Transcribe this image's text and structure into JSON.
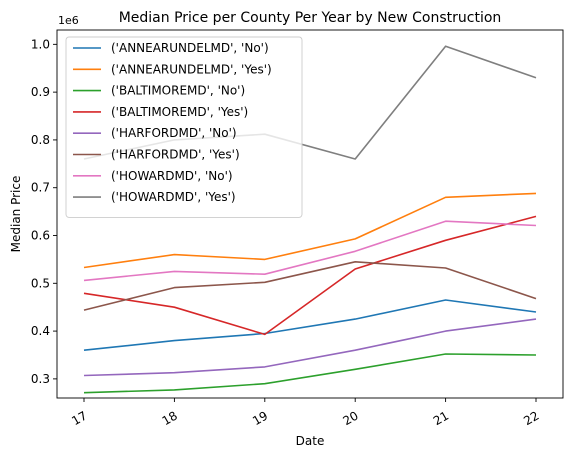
{
  "chart_data": {
    "type": "line",
    "title": "Median Price per County Per Year by New Construction",
    "xlabel": "Date",
    "ylabel": "Median Price",
    "y_multiplier_label": "1e6",
    "x": [
      "17",
      "18",
      "19",
      "20",
      "21",
      "22"
    ],
    "ylim": [
      0.26,
      1.03
    ],
    "yticks": [
      "0.3",
      "0.4",
      "0.5",
      "0.6",
      "0.7",
      "0.8",
      "0.9",
      "1.0"
    ],
    "grid": false,
    "legend_position": "top-left",
    "series": [
      {
        "name": "('ANNEARUNDELMD', 'No')",
        "color": "#1f77b4",
        "values": [
          0.36,
          0.38,
          0.395,
          0.425,
          0.465,
          0.44
        ]
      },
      {
        "name": "('ANNEARUNDELMD', 'Yes')",
        "color": "#ff7f0e",
        "values": [
          0.533,
          0.56,
          0.55,
          0.593,
          0.68,
          0.688
        ]
      },
      {
        "name": "('BALTIMOREMD', 'No')",
        "color": "#2ca02c",
        "values": [
          0.271,
          0.277,
          0.29,
          0.32,
          0.352,
          0.35
        ]
      },
      {
        "name": "('BALTIMOREMD', 'Yes')",
        "color": "#d62728",
        "values": [
          0.479,
          0.45,
          0.393,
          0.53,
          0.59,
          0.64
        ]
      },
      {
        "name": "('HARFORDMD', 'No')",
        "color": "#9467bd",
        "values": [
          0.307,
          0.313,
          0.325,
          0.36,
          0.4,
          0.425
        ]
      },
      {
        "name": "('HARFORDMD', 'Yes')",
        "color": "#8c564b",
        "values": [
          0.444,
          0.491,
          0.502,
          0.545,
          0.532,
          0.468
        ]
      },
      {
        "name": "('HOWARDMD', 'No')",
        "color": "#e377c2",
        "values": [
          0.506,
          0.525,
          0.519,
          0.567,
          0.63,
          0.621
        ]
      },
      {
        "name": "('HOWARDMD', 'Yes')",
        "color": "#7f7f7f",
        "values": [
          0.76,
          0.8,
          0.812,
          0.76,
          0.996,
          0.93
        ]
      }
    ]
  }
}
